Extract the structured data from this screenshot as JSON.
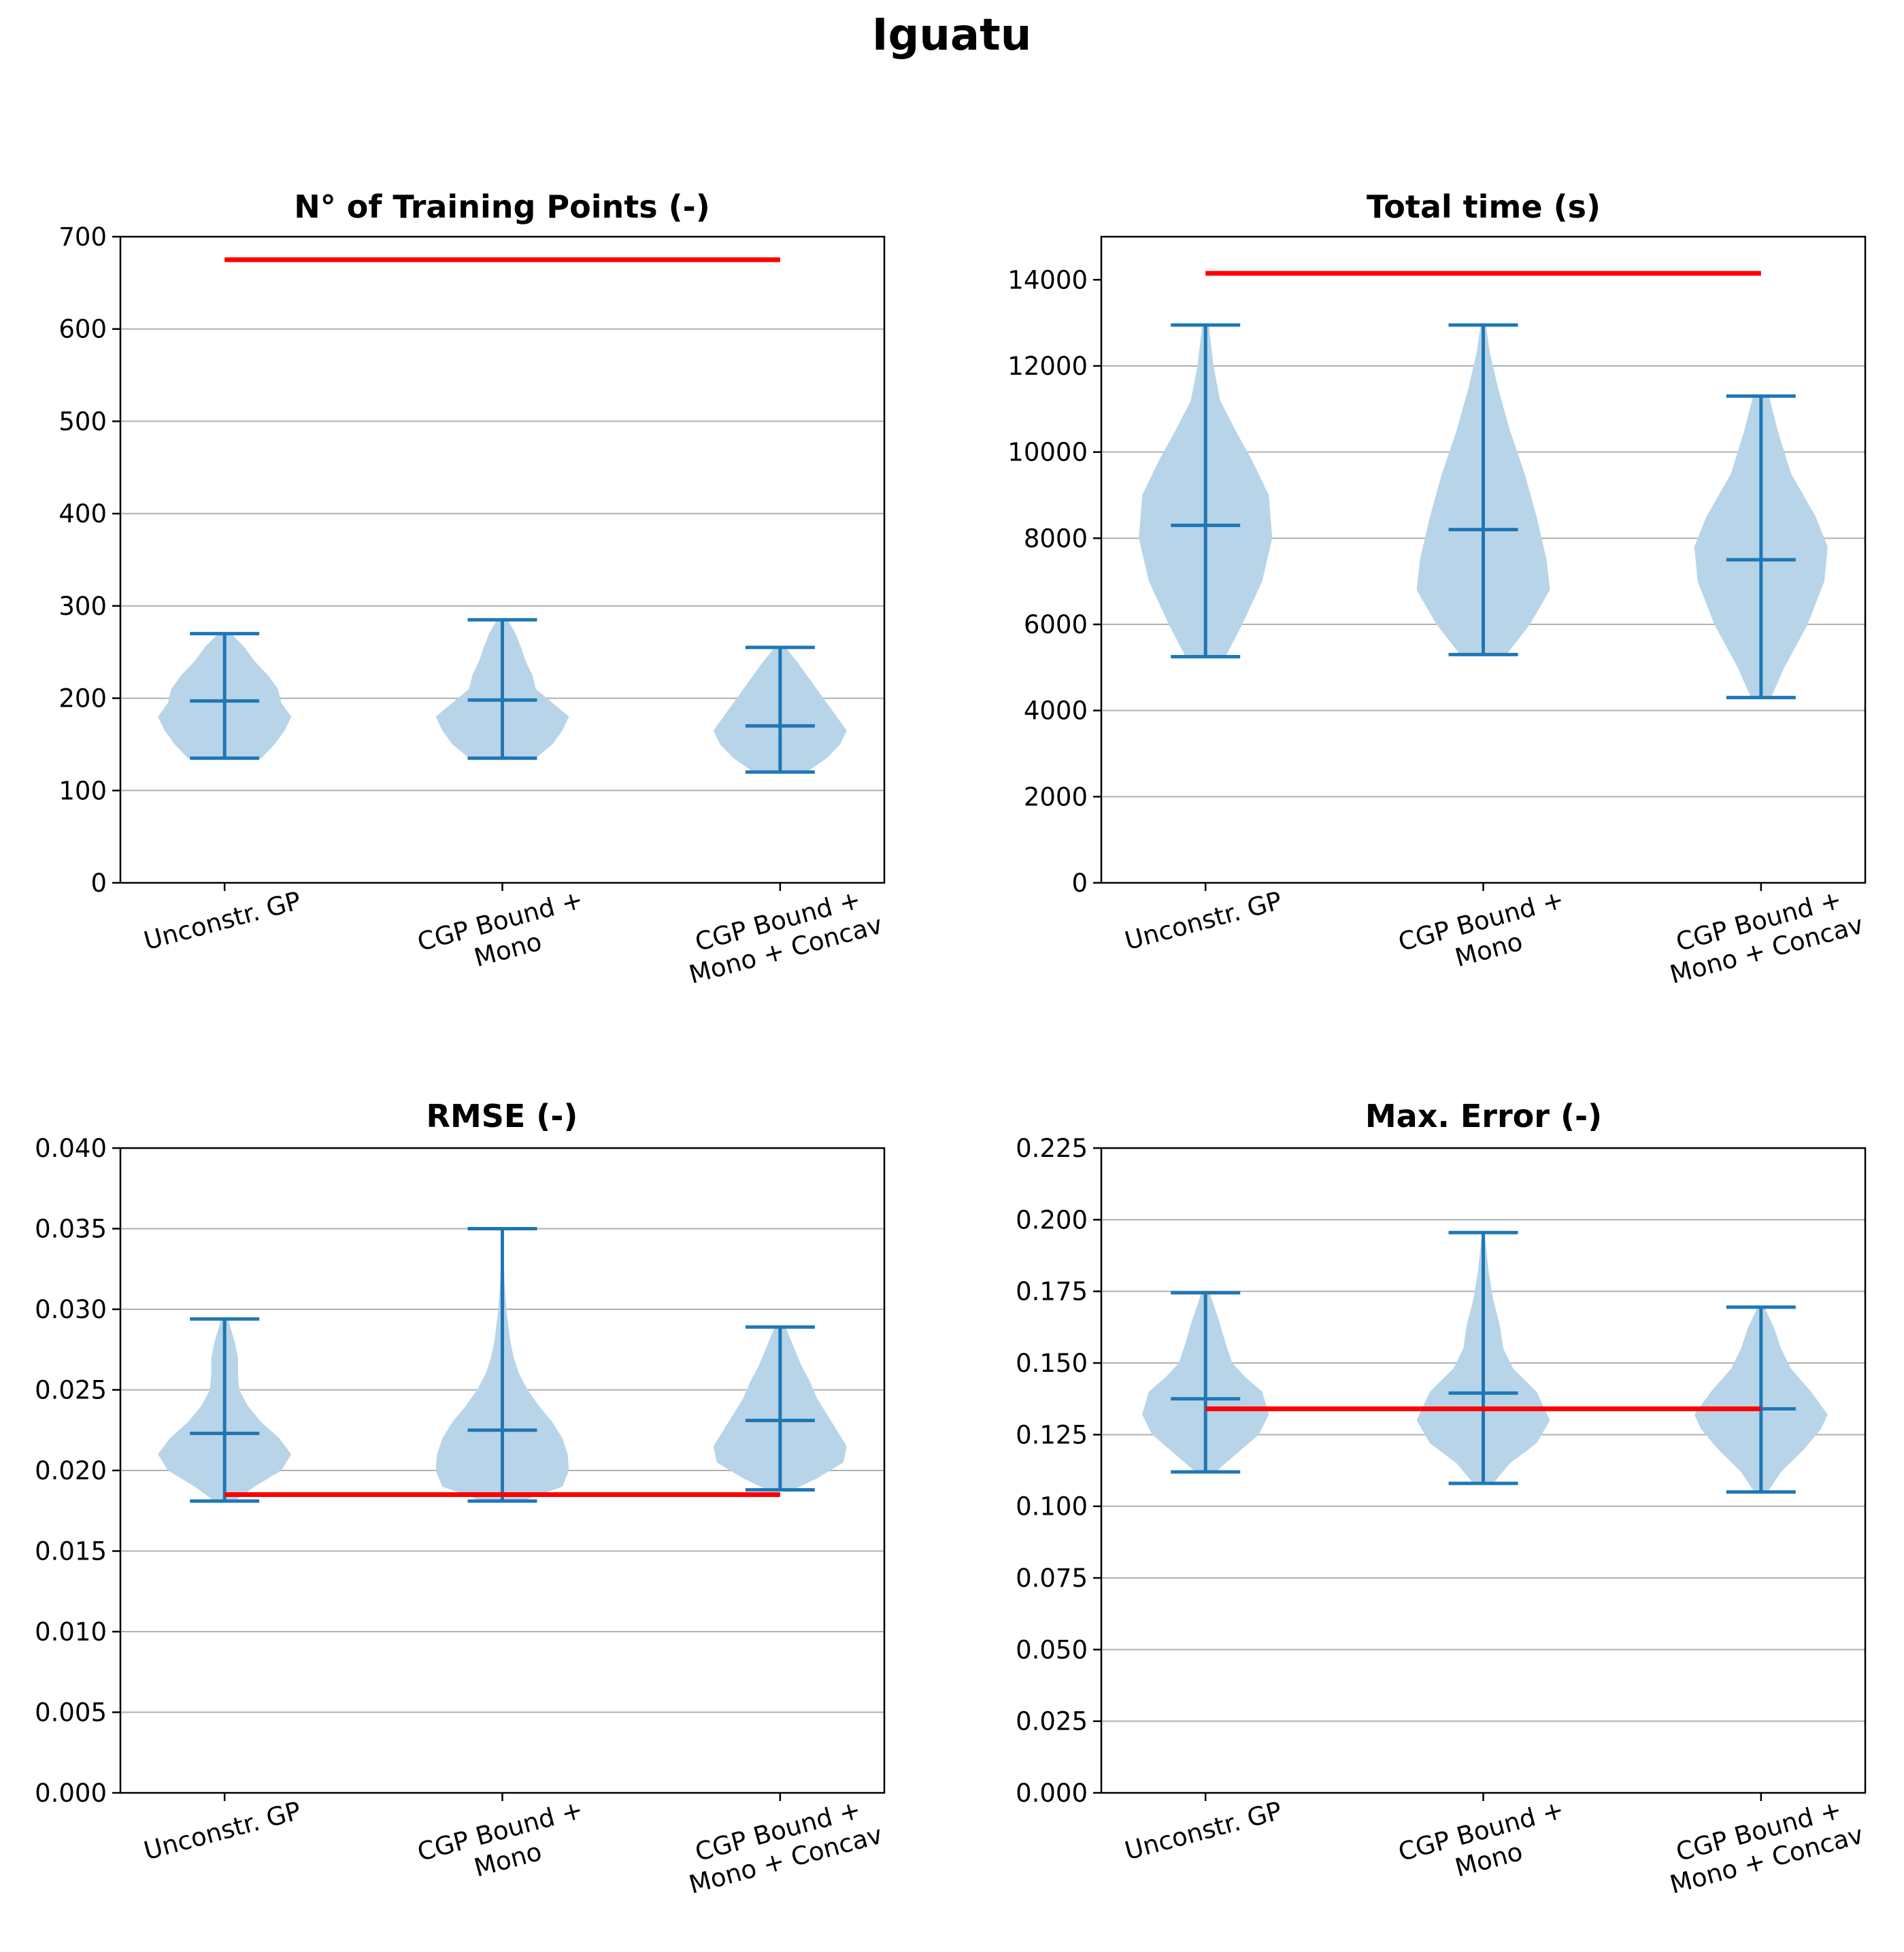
{
  "figure": {
    "title": "Iguatu",
    "colors": {
      "violin": "#1f77b4",
      "violin_fill": "#b8d4e8",
      "reference": "#ff0000",
      "grid": "#b0b0b0"
    }
  },
  "chart_data": [
    {
      "type": "violin",
      "title": "N° of Training Points (-)",
      "categories": [
        "Unconstr. GP",
        "CGP Bound + Mono",
        "CGP Bound + Mono + Concav"
      ],
      "category_label_lines": [
        [
          "Unconstr. GP"
        ],
        [
          "CGP Bound +",
          "Mono"
        ],
        [
          "CGP Bound +",
          "Mono + Concav"
        ]
      ],
      "ylim": [
        0,
        700
      ],
      "yticks": [
        0,
        100,
        200,
        300,
        400,
        500,
        600,
        700
      ],
      "ytick_labels": [
        "0",
        "100",
        "200",
        "300",
        "400",
        "500",
        "600",
        "700"
      ],
      "grid": "horizontal",
      "series": [
        {
          "min": 135,
          "max": 270,
          "median": 197,
          "density": [
            [
              135,
              0.55
            ],
            [
              150,
              0.75
            ],
            [
              165,
              0.9
            ],
            [
              180,
              1.0
            ],
            [
              195,
              0.85
            ],
            [
              210,
              0.8
            ],
            [
              225,
              0.65
            ],
            [
              240,
              0.45
            ],
            [
              255,
              0.3
            ],
            [
              270,
              0.1
            ]
          ]
        },
        {
          "min": 135,
          "max": 285,
          "median": 198,
          "density": [
            [
              135,
              0.5
            ],
            [
              150,
              0.75
            ],
            [
              165,
              0.9
            ],
            [
              180,
              1.0
            ],
            [
              195,
              0.75
            ],
            [
              210,
              0.5
            ],
            [
              225,
              0.45
            ],
            [
              240,
              0.35
            ],
            [
              255,
              0.28
            ],
            [
              270,
              0.2
            ],
            [
              285,
              0.08
            ]
          ]
        },
        {
          "min": 120,
          "max": 255,
          "median": 170,
          "density": [
            [
              120,
              0.4
            ],
            [
              135,
              0.7
            ],
            [
              150,
              0.9
            ],
            [
              165,
              1.0
            ],
            [
              180,
              0.85
            ],
            [
              195,
              0.7
            ],
            [
              210,
              0.55
            ],
            [
              225,
              0.4
            ],
            [
              240,
              0.25
            ],
            [
              255,
              0.08
            ]
          ]
        }
      ],
      "reference_line": {
        "y": 675
      }
    },
    {
      "type": "violin",
      "title": "Total time (s)",
      "categories": [
        "Unconstr. GP",
        "CGP Bound + Mono",
        "CGP Bound + Mono + Concav"
      ],
      "category_label_lines": [
        [
          "Unconstr. GP"
        ],
        [
          "CGP Bound +",
          "Mono"
        ],
        [
          "CGP Bound +",
          "Mono + Concav"
        ]
      ],
      "ylim": [
        0,
        15000
      ],
      "yticks": [
        0,
        2000,
        4000,
        6000,
        8000,
        10000,
        12000,
        14000
      ],
      "ytick_labels": [
        "0",
        "2000",
        "4000",
        "6000",
        "8000",
        "10000",
        "12000",
        "14000"
      ],
      "grid": "horizontal",
      "series": [
        {
          "min": 5250,
          "max": 12950,
          "median": 8300,
          "density": [
            [
              5250,
              0.3
            ],
            [
              6000,
              0.55
            ],
            [
              7000,
              0.85
            ],
            [
              8000,
              1.0
            ],
            [
              9000,
              0.95
            ],
            [
              9800,
              0.7
            ],
            [
              10500,
              0.45
            ],
            [
              11200,
              0.22
            ],
            [
              12000,
              0.12
            ],
            [
              12950,
              0.05
            ]
          ]
        },
        {
          "min": 5300,
          "max": 12950,
          "median": 8200,
          "density": [
            [
              5300,
              0.35
            ],
            [
              6000,
              0.7
            ],
            [
              6800,
              1.0
            ],
            [
              7500,
              0.95
            ],
            [
              8500,
              0.8
            ],
            [
              9500,
              0.62
            ],
            [
              10500,
              0.4
            ],
            [
              11500,
              0.22
            ],
            [
              12300,
              0.1
            ],
            [
              12950,
              0.04
            ]
          ]
        },
        {
          "min": 4300,
          "max": 11300,
          "median": 7500,
          "density": [
            [
              4300,
              0.15
            ],
            [
              5000,
              0.35
            ],
            [
              6000,
              0.7
            ],
            [
              7000,
              0.95
            ],
            [
              7800,
              1.0
            ],
            [
              8500,
              0.82
            ],
            [
              9500,
              0.45
            ],
            [
              10500,
              0.25
            ],
            [
              11300,
              0.12
            ]
          ]
        }
      ],
      "reference_line": {
        "y": 14150
      }
    },
    {
      "type": "violin",
      "title": "RMSE (-)",
      "categories": [
        "Unconstr. GP",
        "CGP Bound + Mono",
        "CGP Bound + Mono + Concav"
      ],
      "category_label_lines": [
        [
          "Unconstr. GP"
        ],
        [
          "CGP Bound +",
          "Mono"
        ],
        [
          "CGP Bound +",
          "Mono + Concav"
        ]
      ],
      "ylim": [
        0,
        0.04
      ],
      "yticks": [
        0,
        0.005,
        0.01,
        0.015,
        0.02,
        0.025,
        0.03,
        0.035,
        0.04
      ],
      "ytick_labels": [
        "0.000",
        "0.005",
        "0.010",
        "0.015",
        "0.020",
        "0.025",
        "0.030",
        "0.035",
        "0.040"
      ],
      "grid": "horizontal",
      "series": [
        {
          "min": 0.0181,
          "max": 0.0294,
          "median": 0.0223,
          "density": [
            [
              0.0181,
              0.15
            ],
            [
              0.019,
              0.45
            ],
            [
              0.02,
              0.85
            ],
            [
              0.021,
              1.0
            ],
            [
              0.022,
              0.82
            ],
            [
              0.023,
              0.55
            ],
            [
              0.024,
              0.35
            ],
            [
              0.025,
              0.22
            ],
            [
              0.026,
              0.2
            ],
            [
              0.027,
              0.2
            ],
            [
              0.028,
              0.15
            ],
            [
              0.0294,
              0.05
            ]
          ]
        },
        {
          "min": 0.0181,
          "max": 0.035,
          "median": 0.0225,
          "density": [
            [
              0.0181,
              0.3
            ],
            [
              0.019,
              0.9
            ],
            [
              0.02,
              1.0
            ],
            [
              0.021,
              0.98
            ],
            [
              0.022,
              0.9
            ],
            [
              0.023,
              0.75
            ],
            [
              0.024,
              0.55
            ],
            [
              0.025,
              0.38
            ],
            [
              0.026,
              0.25
            ],
            [
              0.027,
              0.17
            ],
            [
              0.028,
              0.12
            ],
            [
              0.03,
              0.06
            ],
            [
              0.032,
              0.03
            ],
            [
              0.035,
              0.01
            ]
          ]
        },
        {
          "min": 0.0188,
          "max": 0.0289,
          "median": 0.0231,
          "density": [
            [
              0.0188,
              0.2
            ],
            [
              0.0195,
              0.55
            ],
            [
              0.0205,
              0.95
            ],
            [
              0.0215,
              1.0
            ],
            [
              0.0225,
              0.85
            ],
            [
              0.0235,
              0.7
            ],
            [
              0.0245,
              0.55
            ],
            [
              0.0255,
              0.45
            ],
            [
              0.0265,
              0.32
            ],
            [
              0.0275,
              0.22
            ],
            [
              0.0289,
              0.08
            ]
          ]
        }
      ],
      "reference_line": {
        "y": 0.0185
      }
    },
    {
      "type": "violin",
      "title": "Max. Error (-)",
      "categories": [
        "Unconstr. GP",
        "CGP Bound + Mono",
        "CGP Bound + Mono + Concav"
      ],
      "category_label_lines": [
        [
          "Unconstr. GP"
        ],
        [
          "CGP Bound +",
          "Mono"
        ],
        [
          "CGP Bound +",
          "Mono + Concav"
        ]
      ],
      "ylim": [
        0,
        0.225
      ],
      "yticks": [
        0,
        0.025,
        0.05,
        0.075,
        0.1,
        0.125,
        0.15,
        0.175,
        0.2,
        0.225
      ],
      "ytick_labels": [
        "0.000",
        "0.025",
        "0.050",
        "0.075",
        "0.100",
        "0.125",
        "0.150",
        "0.175",
        "0.200",
        "0.225"
      ],
      "grid": "horizontal",
      "series": [
        {
          "min": 0.112,
          "max": 0.1745,
          "median": 0.1375,
          "density": [
            [
              0.112,
              0.15
            ],
            [
              0.118,
              0.45
            ],
            [
              0.125,
              0.8
            ],
            [
              0.132,
              0.95
            ],
            [
              0.14,
              0.85
            ],
            [
              0.145,
              0.6
            ],
            [
              0.15,
              0.4
            ],
            [
              0.157,
              0.3
            ],
            [
              0.165,
              0.2
            ],
            [
              0.1745,
              0.06
            ]
          ]
        },
        {
          "min": 0.108,
          "max": 0.1955,
          "median": 0.1395,
          "density": [
            [
              0.108,
              0.15
            ],
            [
              0.115,
              0.4
            ],
            [
              0.122,
              0.8
            ],
            [
              0.13,
              1.0
            ],
            [
              0.14,
              0.8
            ],
            [
              0.148,
              0.45
            ],
            [
              0.155,
              0.3
            ],
            [
              0.163,
              0.25
            ],
            [
              0.172,
              0.15
            ],
            [
              0.182,
              0.08
            ],
            [
              0.1955,
              0.02
            ]
          ]
        },
        {
          "min": 0.105,
          "max": 0.1695,
          "median": 0.134,
          "density": [
            [
              0.105,
              0.1
            ],
            [
              0.112,
              0.3
            ],
            [
              0.12,
              0.65
            ],
            [
              0.127,
              0.9
            ],
            [
              0.132,
              1.0
            ],
            [
              0.14,
              0.75
            ],
            [
              0.148,
              0.45
            ],
            [
              0.155,
              0.3
            ],
            [
              0.162,
              0.2
            ],
            [
              0.1695,
              0.05
            ]
          ]
        }
      ],
      "reference_line": {
        "y": 0.134
      }
    }
  ]
}
